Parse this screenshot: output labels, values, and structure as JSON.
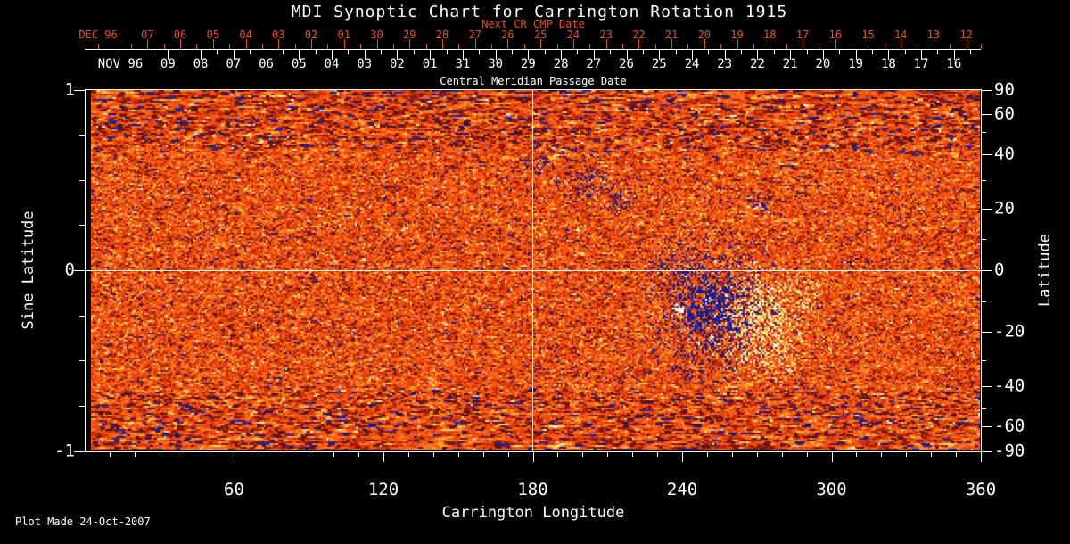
{
  "title": "MDI Synoptic Chart for Carrington Rotation 1915",
  "colors": {
    "background": "#000000",
    "foreground": "#ffffff",
    "accent_red": "#e8501f",
    "quiet_sun_orange": "#f05a14",
    "negative_field_blue": "#1e2fb4",
    "positive_field_yellow": "#ffd24a"
  },
  "top_axis": {
    "next_cr_title": "Next CR CMP Date",
    "cmp_title": "Central Meridian Passage Date",
    "next_cr_month": "DEC 96",
    "cmp_month": "NOV 96",
    "next_cr_days": [
      "07",
      "06",
      "05",
      "04",
      "03",
      "02",
      "01",
      "30",
      "29",
      "28",
      "27",
      "26",
      "25",
      "24",
      "23",
      "22",
      "21",
      "20",
      "19",
      "18",
      "17",
      "16",
      "15",
      "14",
      "13",
      "12"
    ],
    "cmp_days": [
      "09",
      "08",
      "07",
      "06",
      "05",
      "04",
      "03",
      "02",
      "01",
      "31",
      "30",
      "29",
      "28",
      "27",
      "26",
      "25",
      "24",
      "23",
      "22",
      "21",
      "20",
      "19",
      "18",
      "17",
      "16"
    ]
  },
  "left_axis": {
    "label": "Sine Latitude",
    "tick_labels": [
      "1",
      "0",
      "-1"
    ]
  },
  "right_axis": {
    "label": "Latitude",
    "tick_labels": [
      "90",
      "60",
      "40",
      "20",
      "0",
      "-20",
      "-40",
      "-60",
      "-90"
    ]
  },
  "bottom_axis": {
    "label": "Carrington Longitude",
    "tick_labels": [
      "60",
      "120",
      "180",
      "240",
      "300",
      "360"
    ]
  },
  "footer": "Plot Made 24-Oct-2007",
  "chart_data": {
    "type": "heatmap",
    "title": "MDI Synoptic Chart for Carrington Rotation 1915",
    "xlabel": "Carrington Longitude",
    "ylabel": "Sine Latitude",
    "ylabel_right": "Latitude",
    "x_range": [
      0,
      360
    ],
    "x_major_ticks": [
      60,
      120,
      180,
      240,
      300,
      360
    ],
    "x_minor_tick_step": 10,
    "y_range_sine_latitude": [
      -1,
      1
    ],
    "y_left_major_ticks": [
      1,
      0,
      -1
    ],
    "y_left_minor_step": 0.25,
    "y_right_ticks_latitude_deg": [
      90,
      60,
      40,
      20,
      0,
      -20,
      -40,
      -60,
      -90
    ],
    "grid": {
      "vertical_line_at_longitude": 180,
      "horizontal_line_at_sine_latitude": 0
    },
    "top_date_axis": {
      "description": "central meridian passage dates run right-to-left; white row NOV 96 days 09..16 (via 01/31), red row next-rotation DEC 96 days 07..12 (via 01/30)",
      "white_dates_left_to_right": [
        "NOV 96",
        "09",
        "08",
        "07",
        "06",
        "05",
        "04",
        "03",
        "02",
        "01",
        "31",
        "30",
        "29",
        "28",
        "27",
        "26",
        "25",
        "24",
        "23",
        "22",
        "21",
        "20",
        "19",
        "18",
        "17",
        "16"
      ],
      "red_dates_left_to_right": [
        "DEC 96",
        "07",
        "06",
        "05",
        "04",
        "03",
        "02",
        "01",
        "30",
        "29",
        "28",
        "27",
        "26",
        "25",
        "24",
        "23",
        "22",
        "21",
        "20",
        "19",
        "18",
        "17",
        "16",
        "15",
        "14",
        "13",
        "12"
      ]
    },
    "colormap_description": "orange-red mottled quiet-Sun noise; dark blue/black speckles = strong negative magnetic field; yellow/white speckles = strong positive magnetic field",
    "features": [
      {
        "name": "active region negative polarity",
        "longitude_range": [
          238,
          262
        ],
        "latitude_range": [
          -25,
          0
        ],
        "appearance": "dense cluster of dark blue and black speckles"
      },
      {
        "name": "active region positive polarity",
        "longitude_range": [
          258,
          288
        ],
        "latitude_range": [
          -28,
          -4
        ],
        "appearance": "bright cluster of white and yellow speckles"
      },
      {
        "name": "small bright plage point",
        "longitude": 239,
        "latitude": -13,
        "appearance": "isolated white spot"
      },
      {
        "name": "scattered weak flux band",
        "longitude_range": [
          170,
          240
        ],
        "latitude_range": [
          8,
          32
        ],
        "appearance": "sparse dark blue specks"
      },
      {
        "name": "polar streaking",
        "latitude_range": "|latitude| > 50 deg",
        "appearance": "horizontally stretched streaky noise along top and bottom of map"
      }
    ]
  }
}
